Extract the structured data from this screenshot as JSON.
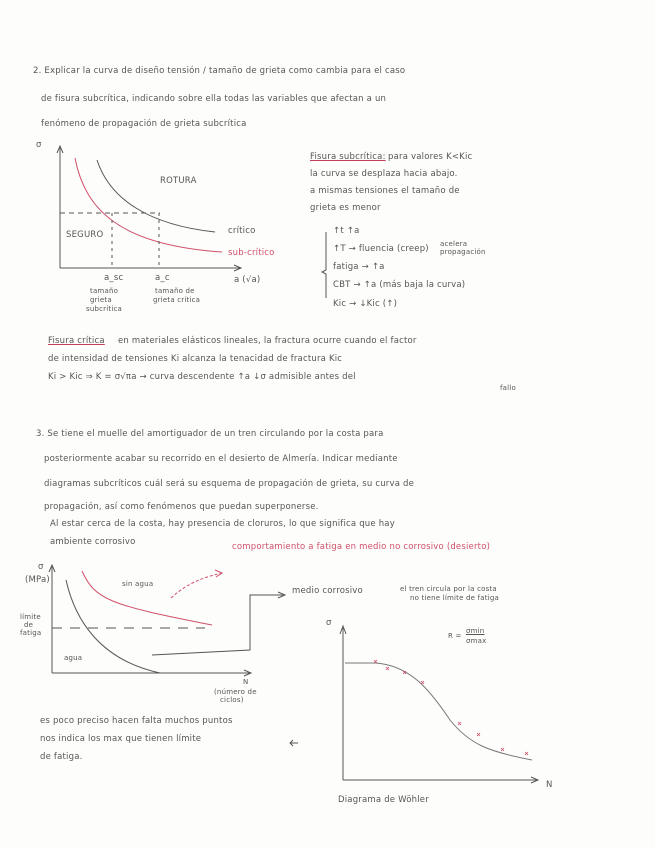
{
  "q2": {
    "lines": [
      "2. Explicar la curva de diseño tensión / tamaño de grieta como cambia para el caso",
      "de fisura subcrítica, indicando sobre ella todas las variables que afectan a un",
      "fenómeno de propagación de grieta subcrítica"
    ],
    "diagram": {
      "y_label": "σ",
      "x_label": "a (√a)",
      "region_top": "ROTURA",
      "region_bottom": "SEGURO",
      "curve_critical": "crítico",
      "curve_subcritical": "sub-crítico",
      "tick_asc": "a_sc",
      "tick_ac": "a_c",
      "asc_caption": [
        "tamaño",
        "grieta",
        "subcrítica"
      ],
      "ac_caption": [
        "tamaño de",
        "grieta crítica"
      ]
    },
    "notes": {
      "heading": "Fisura subcrítica:",
      "lines": [
        "para valores K<Kic",
        "la curva se desplaza hacia abajo.",
        "a mismas tensiones el tamaño de",
        "grieta es menor"
      ],
      "list": [
        "↑t ↑a",
        "↑T → fluencia (creep)",
        "fatiga → ↑a",
        "CBT → ↑a (más baja la curva)",
        "Kic → ↓Kic (↑)"
      ],
      "side_note": [
        "acelera",
        "propagación"
      ]
    },
    "critical": {
      "heading": "Fisura crítica",
      "lines": [
        "en materiales elásticos lineales, la fractura ocurre cuando el factor",
        "de intensidad de tensiones Ki alcanza la tenacidad de fractura Kic",
        "Ki > Kic       ⇒  K = σ√πa   → curva descendente  ↑a ↓σ admisible antes del",
        "fallo"
      ]
    }
  },
  "q3": {
    "lines": [
      "3. Se tiene el muelle del amortiguador de un tren circulando por la costa para",
      "posteriormente acabar su recorrido en el desierto de Almería. Indicar mediante",
      "diagramas subcríticos cuál será su esquema de propagación de grieta, su curva de",
      "propagación, así como fenómenos que puedan superponerse."
    ],
    "answer": [
      "Al estar cerca de la costa, hay presencia de cloruros, lo que significa que hay",
      "ambiente corrosivo"
    ],
    "pink_note": "comportamiento a fatiga en medio no corrosivo (desierto)",
    "diagram": {
      "y_label": [
        "σ",
        "(MPa)"
      ],
      "fatigue_limit": [
        "límite",
        "de",
        "fatiga"
      ],
      "curve_upper": "sin agua",
      "curve_lower": "agua",
      "x_label": "N",
      "x_caption": [
        "(número de",
        "ciclos)"
      ],
      "medium_label": "medio corrosivo",
      "medium_note": [
        "el tren circula por la costa",
        "no tiene límite de fatiga"
      ]
    },
    "bottom_note": [
      "es poco preciso hacen falta muchos puntos",
      "nos indica los max que tienen límite",
      "de fatiga."
    ],
    "wohler": {
      "y_label": "σ",
      "x_label": "N",
      "formula_lhs": "R =",
      "formula_num": "σmin",
      "formula_den": "σmax",
      "caption": "Diagrama de Wöhler"
    }
  },
  "colors": {
    "ink": "#555555",
    "red": "#d0506a"
  }
}
